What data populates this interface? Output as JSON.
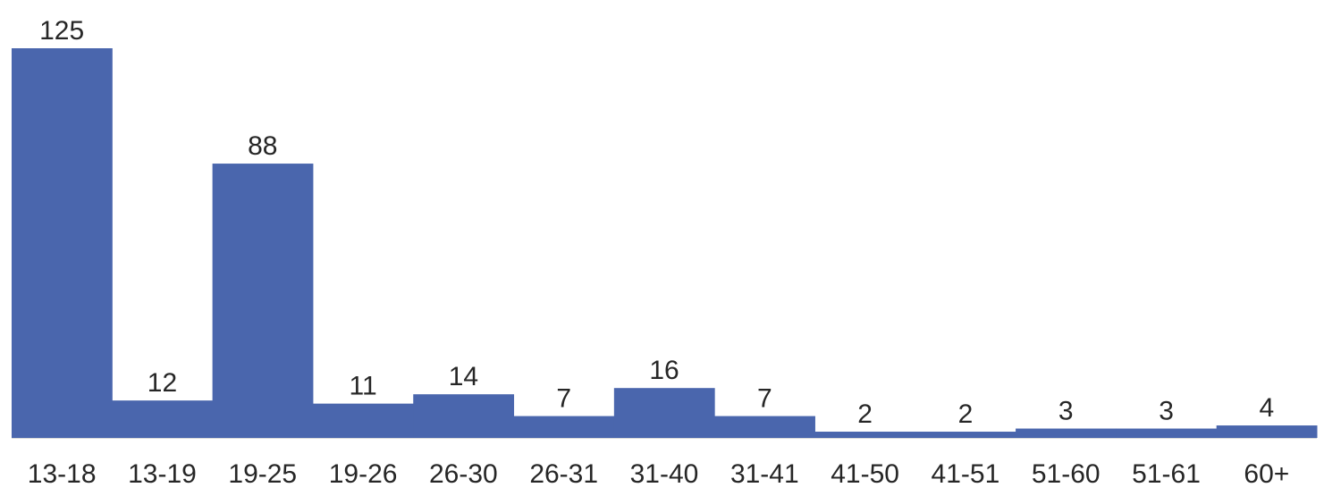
{
  "chart_data": {
    "type": "bar",
    "title": "",
    "xlabel": "",
    "ylabel": "",
    "categories": [
      "13-18",
      "13-19",
      "19-25",
      "19-26",
      "26-30",
      "26-31",
      "31-40",
      "31-41",
      "41-50",
      "41-51",
      "51-60",
      "51-61",
      "60+"
    ],
    "series": [
      {
        "values": [
          125,
          12,
          88,
          11,
          14,
          7,
          16,
          7,
          2,
          2,
          3,
          3,
          4
        ]
      }
    ],
    "ylim": [
      0,
      125
    ],
    "grid": false,
    "legend": "none",
    "bar_color": "#4a66ad",
    "axis_color": "#d9d9d9",
    "text_color": "#262626"
  }
}
